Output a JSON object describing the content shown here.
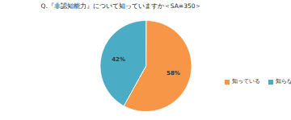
{
  "chart_data": {
    "type": "pie",
    "title": "Q.『非認知能力』について知っていますか＜SA=350＞",
    "categories": [
      "知っている",
      "知らない"
    ],
    "values": [
      58,
      42
    ],
    "value_labels": [
      "58%",
      "42%"
    ],
    "colors": [
      "#F79646",
      "#4BACC6"
    ],
    "data_labels": true,
    "legend": "right"
  }
}
